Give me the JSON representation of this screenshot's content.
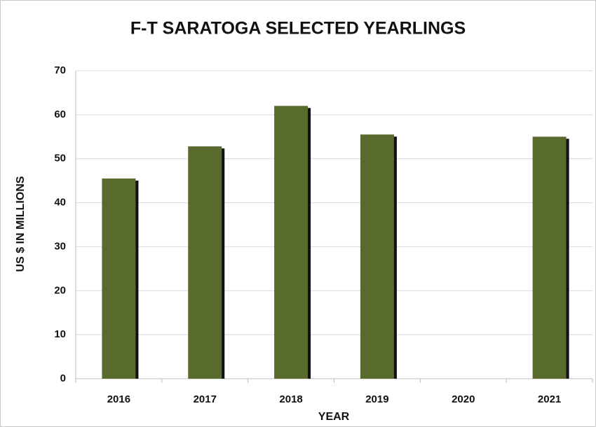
{
  "chart_data": {
    "type": "bar",
    "title": "F-T SARATOGA SELECTED YEARLINGS",
    "x_label": "YEAR",
    "y_label": "US $ IN MILLIONS",
    "categories": [
      "2016",
      "2017",
      "2018",
      "2019",
      "2020",
      "2021"
    ],
    "values": [
      45.5,
      52.8,
      62,
      55.5,
      null,
      55
    ],
    "color": "#586a2c",
    "ylim": [
      0,
      70
    ],
    "yticks": [
      0,
      10,
      20,
      30,
      40,
      50,
      60,
      70
    ],
    "grid": true
  }
}
